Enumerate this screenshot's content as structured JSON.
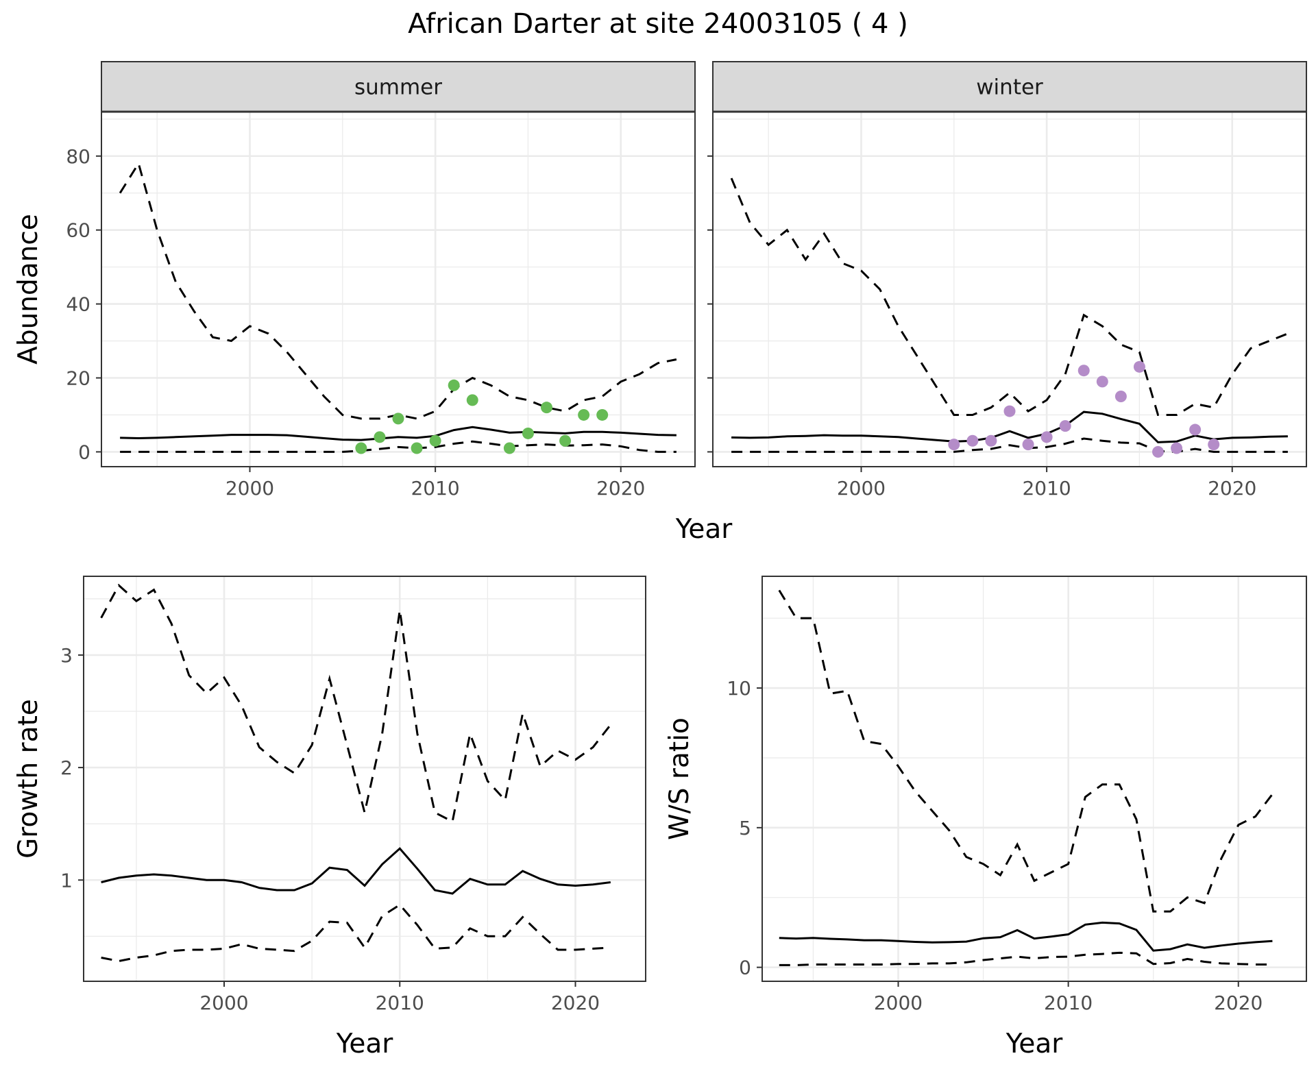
{
  "title": "African Darter at site 24003105 ( 4 )",
  "chart_data": [
    {
      "type": "line",
      "panel": "summer",
      "xlabel": "Year",
      "ylabel": "Abundance",
      "xlim": [
        1992,
        2024
      ],
      "ylim": [
        -4,
        92
      ],
      "x_ticks": [
        2000,
        2010,
        2020
      ],
      "y_ticks": [
        0,
        20,
        40,
        60,
        80
      ],
      "grid": true,
      "x": [
        1993,
        1994,
        1995,
        1996,
        1997,
        1998,
        1999,
        2000,
        2001,
        2002,
        2003,
        2004,
        2005,
        2006,
        2007,
        2008,
        2009,
        2010,
        2011,
        2012,
        2013,
        2014,
        2015,
        2016,
        2017,
        2018,
        2019,
        2020,
        2021,
        2022,
        2023
      ],
      "mean": [
        3.8,
        3.7,
        3.8,
        4.0,
        4.2,
        4.4,
        4.6,
        4.6,
        4.6,
        4.5,
        4.1,
        3.7,
        3.3,
        3.2,
        3.6,
        4.0,
        3.8,
        4.3,
        5.9,
        6.7,
        6.0,
        5.2,
        5.4,
        5.2,
        5.0,
        5.4,
        5.4,
        5.2,
        4.9,
        4.6,
        4.5
      ],
      "upper": [
        70,
        78,
        60,
        46,
        38,
        31,
        30,
        34,
        32,
        27,
        21,
        15,
        10,
        9,
        9,
        10,
        9,
        11,
        17,
        20,
        18,
        15,
        14,
        12,
        11,
        14,
        15,
        19,
        21,
        24,
        25
      ],
      "lower": [
        0,
        0,
        0,
        0,
        0,
        0,
        0,
        0,
        0,
        0,
        0,
        0,
        0,
        0.3,
        0.8,
        1.3,
        1.0,
        1.3,
        2.2,
        2.8,
        2.2,
        1.5,
        1.8,
        2.0,
        1.7,
        1.8,
        2.0,
        1.5,
        0.5,
        0,
        0
      ],
      "points": {
        "color": "#66bb55",
        "x": [
          2006,
          2007,
          2008,
          2009,
          2010,
          2011,
          2012,
          2014,
          2015,
          2016,
          2017,
          2018,
          2019
        ],
        "y": [
          1,
          4,
          9,
          1,
          3,
          18,
          14,
          1,
          5,
          12,
          3,
          10,
          10
        ]
      }
    },
    {
      "type": "line",
      "panel": "winter",
      "xlabel": "Year",
      "ylabel": "Abundance",
      "xlim": [
        1992,
        2024
      ],
      "ylim": [
        -4,
        92
      ],
      "x_ticks": [
        2000,
        2010,
        2020
      ],
      "y_ticks": [
        0,
        20,
        40,
        60,
        80
      ],
      "grid": true,
      "x": [
        1993,
        1994,
        1995,
        1996,
        1997,
        1998,
        1999,
        2000,
        2001,
        2002,
        2003,
        2004,
        2005,
        2006,
        2007,
        2008,
        2009,
        2010,
        2011,
        2012,
        2013,
        2014,
        2015,
        2016,
        2017,
        2018,
        2019,
        2020,
        2021,
        2022,
        2023
      ],
      "mean": [
        3.9,
        3.8,
        3.9,
        4.2,
        4.3,
        4.5,
        4.4,
        4.4,
        4.2,
        4.0,
        3.6,
        3.2,
        2.8,
        3.0,
        3.8,
        5.6,
        3.8,
        4.9,
        7.1,
        10.8,
        10.3,
        8.9,
        7.6,
        2.6,
        2.8,
        4.4,
        3.4,
        3.8,
        3.9,
        4.1,
        4.2
      ],
      "upper": [
        74,
        62,
        56,
        60,
        52,
        59,
        51,
        49,
        44,
        34,
        26,
        18,
        10,
        10,
        12,
        16,
        11,
        14,
        21,
        37,
        34,
        29,
        27,
        10,
        10,
        13,
        12,
        21,
        28,
        30,
        32
      ],
      "lower": [
        0,
        0,
        0,
        0,
        0,
        0,
        0,
        0,
        0,
        0,
        0,
        0,
        0,
        0.5,
        0.8,
        1.8,
        1.0,
        1.3,
        2.2,
        3.6,
        3.0,
        2.5,
        2.3,
        0.2,
        0,
        0.8,
        0,
        0,
        0,
        0,
        0
      ],
      "points": {
        "color": "#b48cc8",
        "x": [
          2005,
          2006,
          2007,
          2008,
          2009,
          2010,
          2011,
          2012,
          2013,
          2014,
          2015,
          2016,
          2017,
          2018,
          2019
        ],
        "y": [
          2,
          3,
          3,
          11,
          2,
          4,
          7,
          22,
          19,
          15,
          23,
          0,
          1,
          6,
          2
        ]
      }
    },
    {
      "type": "line",
      "panel": "growth",
      "xlabel": "Year",
      "ylabel": "Growth rate",
      "xlim": [
        1992,
        2024
      ],
      "ylim": [
        0.1,
        3.7
      ],
      "x_ticks": [
        2000,
        2010,
        2020
      ],
      "y_ticks": [
        1,
        2,
        3
      ],
      "grid": true,
      "x": [
        1993,
        1994,
        1995,
        1996,
        1997,
        1998,
        1999,
        2000,
        2001,
        2002,
        2003,
        2004,
        2005,
        2006,
        2007,
        2008,
        2009,
        2010,
        2011,
        2012,
        2013,
        2014,
        2015,
        2016,
        2017,
        2018,
        2019,
        2020,
        2021,
        2022
      ],
      "mean": [
        0.98,
        1.02,
        1.04,
        1.05,
        1.04,
        1.02,
        1.0,
        1.0,
        0.98,
        0.93,
        0.91,
        0.91,
        0.97,
        1.11,
        1.09,
        0.95,
        1.14,
        1.28,
        1.1,
        0.91,
        0.88,
        1.01,
        0.96,
        0.96,
        1.08,
        1.01,
        0.96,
        0.95,
        0.96,
        0.98
      ],
      "upper": [
        3.33,
        3.62,
        3.48,
        3.58,
        3.28,
        2.82,
        2.66,
        2.8,
        2.55,
        2.18,
        2.05,
        1.95,
        2.2,
        2.79,
        2.2,
        1.6,
        2.3,
        3.4,
        2.3,
        1.6,
        1.52,
        2.3,
        1.88,
        1.71,
        2.48,
        2.01,
        2.15,
        2.07,
        2.18,
        2.38
      ],
      "lower": [
        0.31,
        0.28,
        0.31,
        0.33,
        0.37,
        0.38,
        0.38,
        0.39,
        0.43,
        0.39,
        0.38,
        0.37,
        0.46,
        0.63,
        0.62,
        0.4,
        0.68,
        0.78,
        0.6,
        0.39,
        0.4,
        0.57,
        0.5,
        0.5,
        0.67,
        0.52,
        0.38,
        0.38,
        0.39,
        0.4
      ]
    },
    {
      "type": "line",
      "panel": "ratio",
      "xlabel": "Year",
      "ylabel": "W/S ratio",
      "xlim": [
        1992,
        2024
      ],
      "ylim": [
        -0.5,
        14.0
      ],
      "x_ticks": [
        2000,
        2010,
        2020
      ],
      "y_ticks": [
        0,
        5,
        10
      ],
      "grid": true,
      "x": [
        1993,
        1994,
        1995,
        1996,
        1997,
        1998,
        1999,
        2000,
        2001,
        2002,
        2003,
        2004,
        2005,
        2006,
        2007,
        2008,
        2009,
        2010,
        2011,
        2012,
        2013,
        2014,
        2015,
        2016,
        2017,
        2018,
        2019,
        2020,
        2021,
        2022
      ],
      "mean": [
        1.05,
        1.03,
        1.05,
        1.02,
        1.0,
        0.97,
        0.97,
        0.94,
        0.91,
        0.89,
        0.9,
        0.92,
        1.04,
        1.08,
        1.33,
        1.03,
        1.1,
        1.18,
        1.53,
        1.6,
        1.57,
        1.34,
        0.6,
        0.65,
        0.82,
        0.7,
        0.78,
        0.85,
        0.9,
        0.94
      ],
      "upper": [
        13.5,
        12.5,
        12.5,
        9.8,
        9.9,
        8.1,
        8.0,
        7.2,
        6.3,
        5.6,
        4.9,
        3.95,
        3.7,
        3.3,
        4.4,
        3.1,
        3.4,
        3.7,
        6.1,
        6.55,
        6.55,
        5.3,
        2.0,
        2.0,
        2.5,
        2.3,
        3.9,
        5.1,
        5.4,
        6.2
      ],
      "lower": [
        0.08,
        0.08,
        0.1,
        0.1,
        0.1,
        0.1,
        0.1,
        0.12,
        0.12,
        0.14,
        0.14,
        0.18,
        0.26,
        0.32,
        0.38,
        0.32,
        0.37,
        0.38,
        0.45,
        0.48,
        0.52,
        0.5,
        0.12,
        0.15,
        0.3,
        0.2,
        0.14,
        0.12,
        0.1,
        0.1
      ]
    }
  ]
}
